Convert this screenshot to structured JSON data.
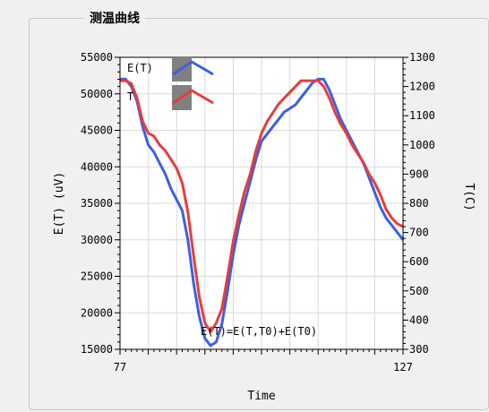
{
  "window": {
    "group_title": "测温曲线"
  },
  "chart_data": {
    "type": "line",
    "xlabel": "Time",
    "ylabel_left": "E(T) (uV)",
    "ylabel_right": "T(C)",
    "xlim": [
      77,
      127
    ],
    "ylim_left": [
      15000,
      55000
    ],
    "ylim_right": [
      300,
      1300
    ],
    "x_tick_labels": [
      "77",
      "127"
    ],
    "y_left_ticks": [
      "15000",
      "20000",
      "25000",
      "30000",
      "35000",
      "40000",
      "45000",
      "50000",
      "55000"
    ],
    "y_right_ticks": [
      "300",
      "400",
      "500",
      "600",
      "700",
      "800",
      "900",
      "1000",
      "1100",
      "1200",
      "1300"
    ],
    "annotation": "E(T)=E(T,T0)+E(T0)",
    "grid": true,
    "legend_position": "top-left",
    "series": [
      {
        "name": "E(T)",
        "axis": "left",
        "color": "#3d5fe0",
        "x": [
          77,
          78,
          79,
          80,
          81,
          82,
          83,
          84,
          85,
          86,
          87,
          88,
          89,
          90,
          91,
          92,
          93,
          94,
          95,
          96,
          97,
          98,
          99,
          100,
          101,
          102,
          103,
          104,
          105,
          106,
          107,
          108,
          109,
          110,
          111,
          112,
          113,
          114,
          115,
          116,
          117,
          118,
          119,
          120,
          121,
          122,
          123,
          124,
          125,
          126,
          127
        ],
        "y": [
          52000,
          52000,
          51000,
          49000,
          45500,
          43000,
          42000,
          40500,
          39000,
          37000,
          35500,
          34000,
          30000,
          24000,
          19500,
          16500,
          15500,
          16000,
          18500,
          23000,
          28000,
          32000,
          35000,
          38000,
          41000,
          43500,
          44500,
          45500,
          46500,
          47500,
          48000,
          48500,
          49500,
          50500,
          51500,
          52000,
          52000,
          50500,
          48500,
          46500,
          45000,
          43500,
          42000,
          40500,
          38500,
          36500,
          34500,
          33000,
          32000,
          31000,
          30000
        ]
      },
      {
        "name": "T",
        "axis": "right",
        "color": "#e83c3c",
        "x": [
          77,
          78,
          79,
          80,
          81,
          82,
          83,
          84,
          85,
          86,
          87,
          88,
          89,
          90,
          91,
          92,
          93,
          94,
          95,
          96,
          97,
          98,
          99,
          100,
          101,
          102,
          103,
          104,
          105,
          106,
          107,
          108,
          109,
          110,
          111,
          112,
          113,
          114,
          115,
          116,
          117,
          118,
          119,
          120,
          121,
          122,
          123,
          124,
          125,
          126,
          127
        ],
        "y": [
          1220,
          1220,
          1210,
          1160,
          1080,
          1040,
          1030,
          1000,
          980,
          950,
          920,
          870,
          770,
          620,
          480,
          390,
          360,
          390,
          440,
          550,
          670,
          760,
          840,
          900,
          980,
          1040,
          1080,
          1110,
          1140,
          1160,
          1180,
          1200,
          1220,
          1220,
          1220,
          1220,
          1200,
          1160,
          1110,
          1070,
          1040,
          1000,
          970,
          940,
          900,
          870,
          830,
          780,
          750,
          730,
          720
        ]
      }
    ]
  }
}
